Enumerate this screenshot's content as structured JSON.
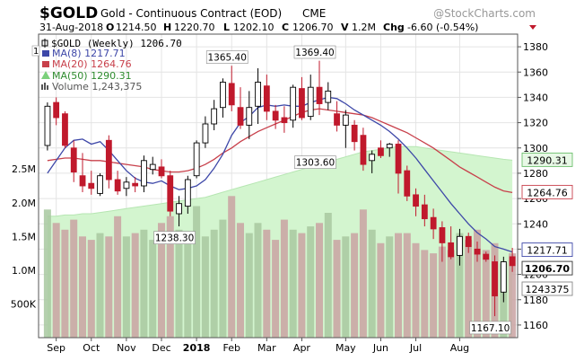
{
  "header": {
    "symbol": "$GOLD",
    "name": "Gold - Continuous Contract (EOD)",
    "exchange": "CME",
    "watermark": "@StockCharts.com",
    "date": "31-Aug-2018",
    "o_label": "O",
    "o_value": "1214.50",
    "h_label": "H",
    "h_value": "1220.70",
    "l_label": "L",
    "l_value": "1202.10",
    "c_label": "C",
    "c_value": "1206.70",
    "v_label": "V",
    "v_value": "1.2M",
    "chg_label": "Chg",
    "chg_value": "-6.60 (-0.54%)"
  },
  "legend": {
    "main": "$GOLD (Weekly) 1206.70",
    "ma8": "MA(8) 1217.71",
    "ma20": "MA(20) 1264.76",
    "ma50": "MA(50) 1290.31",
    "volume": "Volume 1,243,375",
    "price_box_partial": "1"
  },
  "colors": {
    "up": "#ffffff",
    "down": "#c0192c",
    "doji": "#111111",
    "ma8": "#3d47a8",
    "ma20": "#c8404b",
    "ma50_fill": "#d3f5cf",
    "ma50_line": "#b6e6b2",
    "volume_up": "#a8c8a0",
    "volume_down": "#c9a2a2",
    "grid": "#e4e4e4"
  },
  "chart_data": {
    "type": "candlestick",
    "interval": "Weekly",
    "ylim": [
      1150,
      1390
    ],
    "yticks": [
      1160,
      1180,
      1200,
      1220,
      1240,
      1260,
      1280,
      1300,
      1320,
      1340,
      1360,
      1380
    ],
    "volume_ylim": [
      0,
      4500000
    ],
    "volume_ticks": [
      {
        "label": "500K",
        "value": 500000
      },
      {
        "label": "1.0M",
        "value": 1000000
      },
      {
        "label": "1.5M",
        "value": 1500000
      },
      {
        "label": "2.0M",
        "value": 2000000
      },
      {
        "label": "2.5M",
        "value": 2500000
      }
    ],
    "month_labels": [
      {
        "label": "Sep",
        "index": 1
      },
      {
        "label": "Oct",
        "index": 5
      },
      {
        "label": "Nov",
        "index": 9
      },
      {
        "label": "Dec",
        "index": 13
      },
      {
        "label": "2018",
        "index": 17
      },
      {
        "label": "Feb",
        "index": 21
      },
      {
        "label": "Mar",
        "index": 25
      },
      {
        "label": "Apr",
        "index": 29
      },
      {
        "label": "May",
        "index": 34
      },
      {
        "label": "Jun",
        "index": 38
      },
      {
        "label": "Jul",
        "index": 42
      },
      {
        "label": "Aug",
        "index": 47
      }
    ],
    "candles": [
      {
        "o": 1302,
        "h": 1336,
        "l": 1298,
        "c": 1333
      },
      {
        "o": 1336,
        "h": 1340,
        "l": 1318,
        "c": 1324
      },
      {
        "o": 1327,
        "h": 1329,
        "l": 1300,
        "c": 1302
      },
      {
        "o": 1300,
        "h": 1306,
        "l": 1273,
        "c": 1281
      },
      {
        "o": 1278,
        "h": 1296,
        "l": 1265,
        "c": 1270
      },
      {
        "o": 1272,
        "h": 1282,
        "l": 1263,
        "c": 1268
      },
      {
        "o": 1264,
        "h": 1280,
        "l": 1262,
        "c": 1278
      },
      {
        "o": 1306,
        "h": 1310,
        "l": 1268,
        "c": 1275
      },
      {
        "o": 1275,
        "h": 1282,
        "l": 1263,
        "c": 1266
      },
      {
        "o": 1268,
        "h": 1277,
        "l": 1262,
        "c": 1273
      },
      {
        "o": 1272,
        "h": 1277,
        "l": 1265,
        "c": 1270
      },
      {
        "o": 1270,
        "h": 1294,
        "l": 1265,
        "c": 1290
      },
      {
        "o": 1283,
        "h": 1293,
        "l": 1279,
        "c": 1287
      },
      {
        "o": 1285,
        "h": 1291,
        "l": 1276,
        "c": 1278
      },
      {
        "o": 1278,
        "h": 1282,
        "l": 1246,
        "c": 1250
      },
      {
        "o": 1248,
        "h": 1262,
        "l": 1238,
        "c": 1256
      },
      {
        "o": 1254,
        "h": 1278,
        "l": 1248,
        "c": 1275
      },
      {
        "o": 1278,
        "h": 1306,
        "l": 1276,
        "c": 1304
      },
      {
        "o": 1304,
        "h": 1325,
        "l": 1300,
        "c": 1319
      },
      {
        "o": 1319,
        "h": 1338,
        "l": 1314,
        "c": 1331
      },
      {
        "o": 1332,
        "h": 1355,
        "l": 1324,
        "c": 1352
      },
      {
        "o": 1351,
        "h": 1365,
        "l": 1329,
        "c": 1334
      },
      {
        "o": 1332,
        "h": 1348,
        "l": 1315,
        "c": 1318
      },
      {
        "o": 1318,
        "h": 1345,
        "l": 1307,
        "c": 1332
      },
      {
        "o": 1333,
        "h": 1363,
        "l": 1319,
        "c": 1352
      },
      {
        "o": 1349,
        "h": 1358,
        "l": 1322,
        "c": 1329
      },
      {
        "o": 1329,
        "h": 1334,
        "l": 1315,
        "c": 1322
      },
      {
        "o": 1324,
        "h": 1333,
        "l": 1312,
        "c": 1320
      },
      {
        "o": 1322,
        "h": 1350,
        "l": 1316,
        "c": 1348
      },
      {
        "o": 1347,
        "h": 1356,
        "l": 1322,
        "c": 1324
      },
      {
        "o": 1325,
        "h": 1358,
        "l": 1322,
        "c": 1348
      },
      {
        "o": 1348,
        "h": 1369,
        "l": 1326,
        "c": 1335
      },
      {
        "o": 1336,
        "h": 1352,
        "l": 1330,
        "c": 1345
      },
      {
        "o": 1327,
        "h": 1337,
        "l": 1313,
        "c": 1318
      },
      {
        "o": 1318,
        "h": 1330,
        "l": 1300,
        "c": 1326
      },
      {
        "o": 1318,
        "h": 1322,
        "l": 1298,
        "c": 1305
      },
      {
        "o": 1310,
        "h": 1316,
        "l": 1282,
        "c": 1287
      },
      {
        "o": 1290,
        "h": 1298,
        "l": 1280,
        "c": 1295
      },
      {
        "o": 1300,
        "h": 1306,
        "l": 1292,
        "c": 1294
      },
      {
        "o": 1300,
        "h": 1304,
        "l": 1293,
        "c": 1303
      },
      {
        "o": 1303,
        "h": 1306,
        "l": 1264,
        "c": 1280
      },
      {
        "o": 1282,
        "h": 1286,
        "l": 1258,
        "c": 1262
      },
      {
        "o": 1263,
        "h": 1268,
        "l": 1246,
        "c": 1254
      },
      {
        "o": 1255,
        "h": 1263,
        "l": 1238,
        "c": 1244
      },
      {
        "o": 1245,
        "h": 1252,
        "l": 1228,
        "c": 1236
      },
      {
        "o": 1237,
        "h": 1242,
        "l": 1210,
        "c": 1225
      },
      {
        "o": 1225,
        "h": 1238,
        "l": 1212,
        "c": 1214
      },
      {
        "o": 1215,
        "h": 1236,
        "l": 1207,
        "c": 1230
      },
      {
        "o": 1230,
        "h": 1233,
        "l": 1217,
        "c": 1222
      },
      {
        "o": 1220,
        "h": 1226,
        "l": 1210,
        "c": 1216
      },
      {
        "o": 1216,
        "h": 1218,
        "l": 1210,
        "c": 1212
      },
      {
        "o": 1210,
        "h": 1215,
        "l": 1167,
        "c": 1183
      },
      {
        "o": 1186,
        "h": 1214,
        "l": 1178,
        "c": 1210
      },
      {
        "o": 1214,
        "h": 1221,
        "l": 1202,
        "c": 1207
      }
    ],
    "volume": [
      1900000,
      1700000,
      1600000,
      1750000,
      1500000,
      1450000,
      1550000,
      1500000,
      1800000,
      1500000,
      1550000,
      1600000,
      1450000,
      1700000,
      1800000,
      1600000,
      1550000,
      1950000,
      1500000,
      1600000,
      1750000,
      2100000,
      1700000,
      1550000,
      1700000,
      1600000,
      1450000,
      1750000,
      1600000,
      1550000,
      1650000,
      1700000,
      1850000,
      1450000,
      1500000,
      1550000,
      1900000,
      1600000,
      1400000,
      1500000,
      1550000,
      1550000,
      1400000,
      1300000,
      1250000,
      1350000,
      1300000,
      1550000,
      1450000,
      1600000,
      1300000,
      1400000,
      1100000,
      1250000
    ],
    "ma8": [
      1280,
      1290,
      1300,
      1306,
      1307,
      1303,
      1305,
      1298,
      1290,
      1282,
      1276,
      1273,
      1272,
      1274,
      1270,
      1267,
      1268,
      1270,
      1275,
      1284,
      1295,
      1310,
      1320,
      1325,
      1332,
      1334,
      1333,
      1334,
      1333,
      1333,
      1336,
      1338,
      1340,
      1339,
      1335,
      1330,
      1326,
      1322,
      1318,
      1313,
      1307,
      1300,
      1292,
      1283,
      1274,
      1265,
      1256,
      1248,
      1240,
      1233,
      1228,
      1222,
      1220,
      1217.71
    ],
    "ma20": [
      1290,
      1291,
      1292,
      1292,
      1291,
      1290,
      1290,
      1289,
      1288,
      1287,
      1286,
      1285,
      1283,
      1282,
      1281,
      1281,
      1282,
      1284,
      1287,
      1291,
      1296,
      1300,
      1305,
      1309,
      1313,
      1316,
      1319,
      1322,
      1325,
      1328,
      1330,
      1331,
      1330,
      1329,
      1328,
      1327,
      1326,
      1324,
      1321,
      1318,
      1315,
      1312,
      1308,
      1304,
      1300,
      1295,
      1290,
      1285,
      1281,
      1277,
      1273,
      1269,
      1266,
      1264.76
    ],
    "ma50": [
      1246,
      1246,
      1247,
      1247,
      1248,
      1248,
      1249,
      1250,
      1251,
      1252,
      1253,
      1254,
      1255,
      1256,
      1257,
      1258,
      1259,
      1260,
      1261,
      1263,
      1265,
      1267,
      1269,
      1271,
      1273,
      1275,
      1277,
      1279,
      1281,
      1283,
      1285,
      1287,
      1289,
      1291,
      1293,
      1295,
      1297,
      1298,
      1299,
      1300,
      1301,
      1301,
      1301,
      1300,
      1299,
      1298,
      1297,
      1296,
      1295,
      1294,
      1293,
      1292,
      1291,
      1290.31
    ],
    "annotations": [
      {
        "text": "1365.40",
        "index": 21,
        "price": 1365.4,
        "pos": "above"
      },
      {
        "text": "1369.40",
        "index": 31,
        "price": 1369.4,
        "pos": "above"
      },
      {
        "text": "1303.60",
        "index": 29,
        "price": 1303.6,
        "pos": "below-left"
      },
      {
        "text": "1238.30",
        "index": 15,
        "price": 1238.3,
        "pos": "below"
      },
      {
        "text": "1167.10",
        "index": 51,
        "price": 1167.1,
        "pos": "below"
      }
    ],
    "right_labels": [
      {
        "text": "1290.31",
        "price": 1290.31,
        "style": "green"
      },
      {
        "text": "1264.76",
        "price": 1264.76,
        "style": "red"
      },
      {
        "text": "1217.71",
        "price": 1217.71,
        "style": "blue"
      },
      {
        "text": "1206.70",
        "price": 1206.7,
        "style": "bold"
      },
      {
        "text": "1243375",
        "volume": 1243375,
        "style": "plain"
      }
    ]
  }
}
